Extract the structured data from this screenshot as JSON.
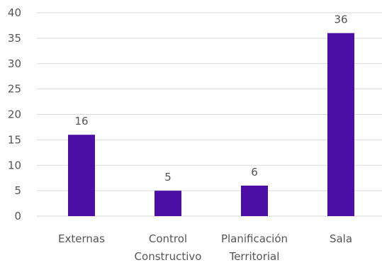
{
  "chart_data": {
    "type": "bar",
    "categories": [
      [
        "Externas"
      ],
      [
        "Control",
        "Constructivo"
      ],
      [
        "Planificación",
        "Territorial"
      ],
      [
        "Sala"
      ]
    ],
    "values": [
      16,
      5,
      6,
      36
    ],
    "data_labels": [
      "16",
      "5",
      "6",
      "36"
    ],
    "ylim": [
      0,
      40
    ],
    "yticks": [
      "0",
      "5",
      "10",
      "15",
      "20",
      "25",
      "30",
      "35",
      "40"
    ],
    "grid": true,
    "legend": "none",
    "colors": {
      "bar": "#4b0fa6"
    }
  }
}
